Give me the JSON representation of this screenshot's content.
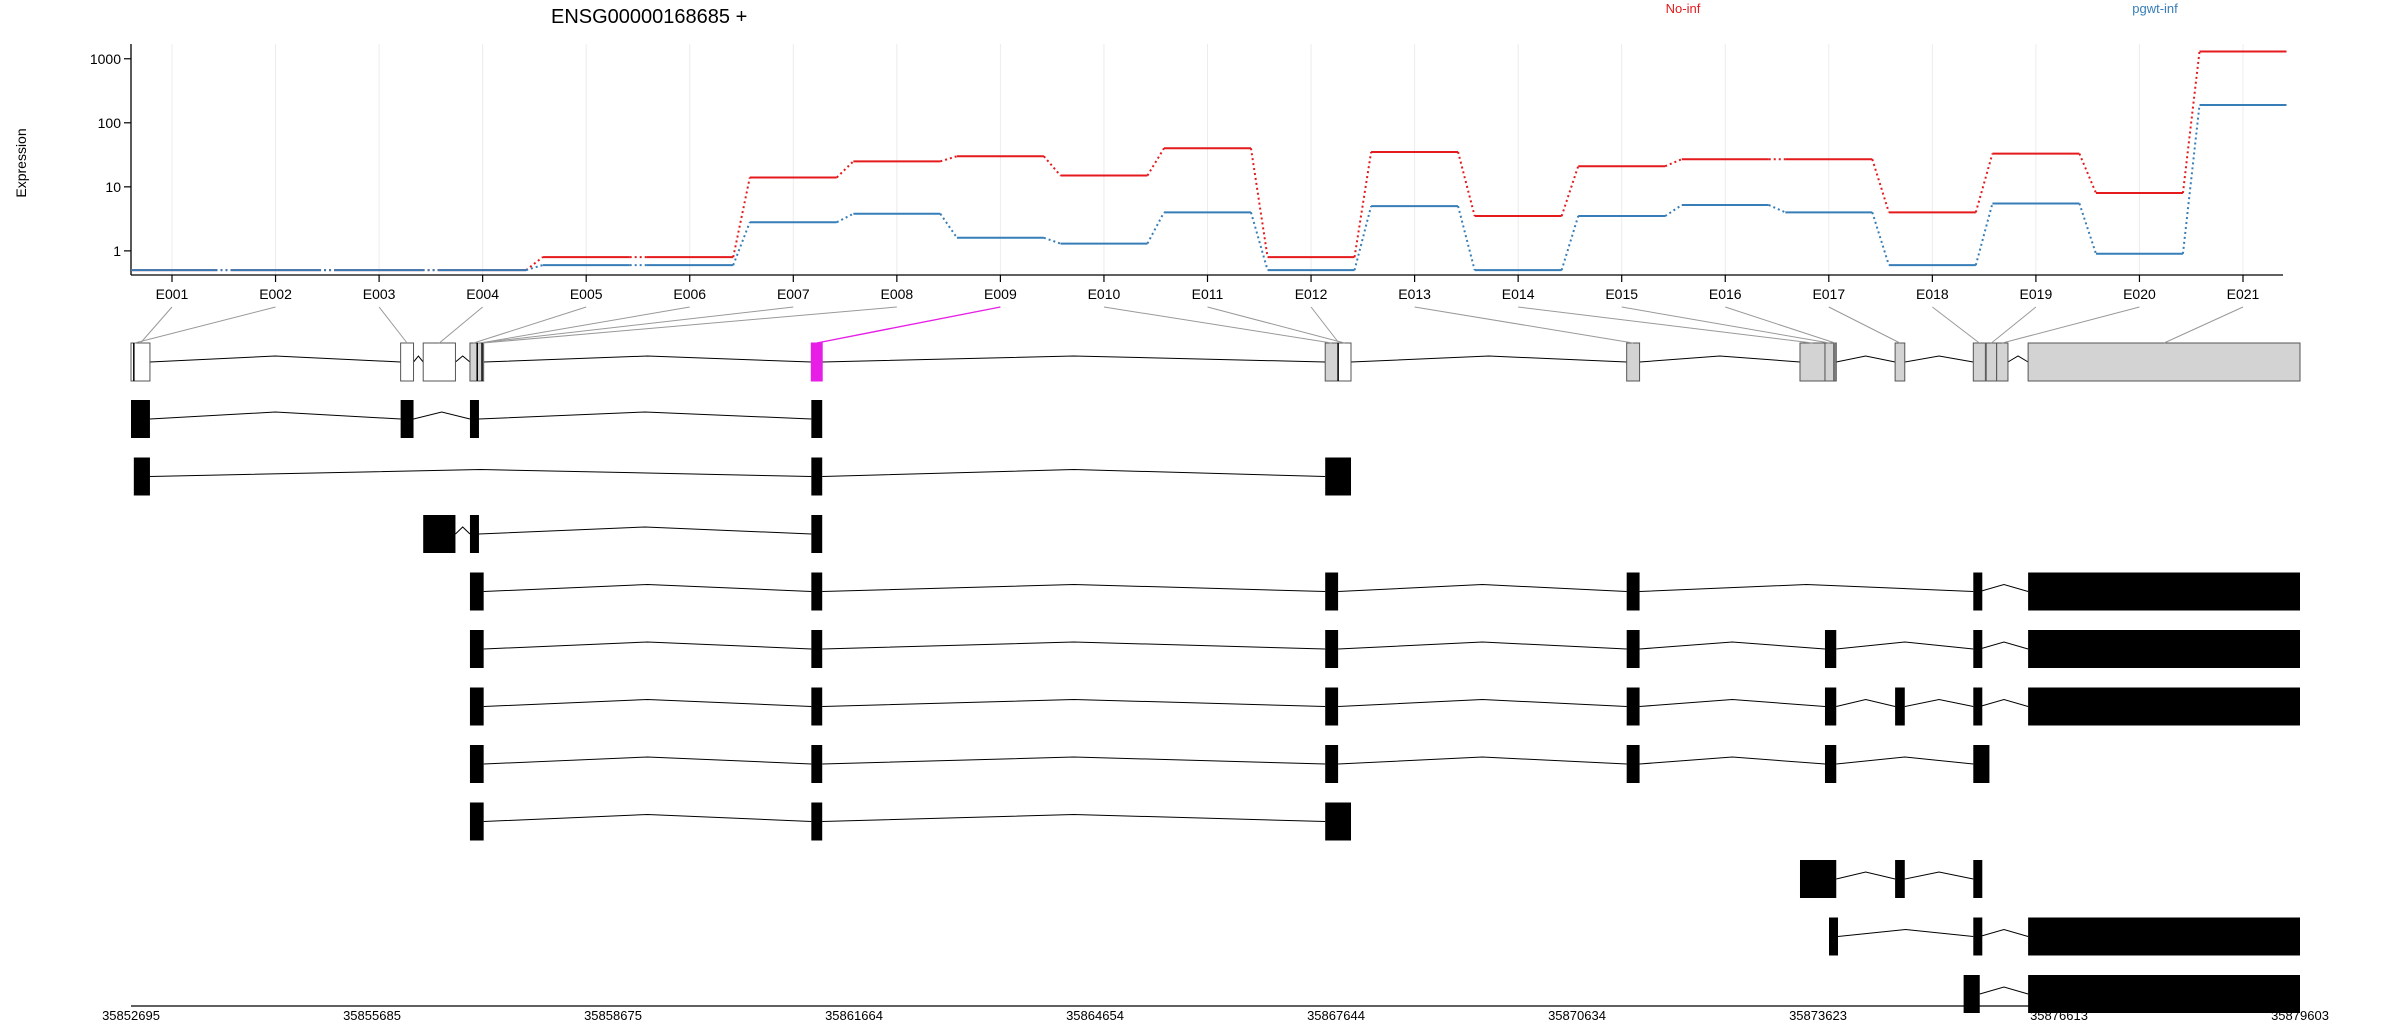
{
  "chart_data": {
    "type": "line",
    "title": "ENSG00000168685 +",
    "ylabel": "Expression",
    "y_scale": "log",
    "y_ticks": [
      "1",
      "10",
      "100",
      "1000"
    ],
    "y_tick_values": [
      1,
      10,
      100,
      1000
    ],
    "ylim": [
      0.42,
      1700
    ],
    "grid": "vertical",
    "legend_placement": "top-right",
    "categories": [
      "E001",
      "E002",
      "E003",
      "E004",
      "E005",
      "E006",
      "E007",
      "E008",
      "E009",
      "E010",
      "E011",
      "E012",
      "E013",
      "E014",
      "E015",
      "E016",
      "E017",
      "E018",
      "E019",
      "E020",
      "E021"
    ],
    "series": [
      {
        "name": "No-inf",
        "color": "#e41a1c",
        "values": [
          0.5,
          0.5,
          0.5,
          0.5,
          0.8,
          0.8,
          14,
          25,
          30,
          15,
          40,
          0.8,
          35,
          3.5,
          21,
          27,
          27,
          4,
          33,
          8,
          1300
        ]
      },
      {
        "name": "pgwt-inf",
        "color": "#377eb8",
        "values": [
          0.5,
          0.5,
          0.5,
          0.5,
          0.6,
          0.6,
          2.8,
          3.8,
          1.6,
          1.3,
          4,
          0.5,
          5,
          0.5,
          3.5,
          5.2,
          4,
          0.6,
          5.5,
          0.9,
          190
        ]
      }
    ],
    "highlighted_exon": "E009",
    "highlight_color": "#e61ee6",
    "genome_axis": {
      "labels": [
        "35852695",
        "35855685",
        "35858675",
        "35861664",
        "35864654",
        "35867644",
        "35870634",
        "35873623",
        "35876613",
        "35879603"
      ],
      "range": [
        35852695,
        35879603
      ]
    },
    "exons": [
      {
        "id": "E001",
        "start": 35852695,
        "end": 35852930,
        "type": "open"
      },
      {
        "id": "E002",
        "start": 35852730,
        "end": 35852750,
        "type": "line"
      },
      {
        "id": "E003",
        "start": 35856040,
        "end": 35856200,
        "type": "open"
      },
      {
        "id": "E004",
        "start": 35856320,
        "end": 35856720,
        "type": "open"
      },
      {
        "id": "E005",
        "start": 35856900,
        "end": 35856990,
        "type": "gray"
      },
      {
        "id": "E006",
        "start": 35856990,
        "end": 35857070,
        "type": "gray"
      },
      {
        "id": "E007",
        "start": 35856990,
        "end": 35857010,
        "type": "line"
      },
      {
        "id": "E008",
        "start": 35857050,
        "end": 35857070,
        "type": "line"
      },
      {
        "id": "E009",
        "start": 35861135,
        "end": 35861270,
        "type": "pink"
      },
      {
        "id": "E010",
        "start": 35867510,
        "end": 35867670,
        "type": "gray"
      },
      {
        "id": "E011",
        "start": 35867670,
        "end": 35867830,
        "type": "open"
      },
      {
        "id": "E012",
        "start": 35867670,
        "end": 35867690,
        "type": "line"
      },
      {
        "id": "E013",
        "start": 35871250,
        "end": 35871410,
        "type": "gray"
      },
      {
        "id": "E014",
        "start": 35873400,
        "end": 35873710,
        "type": "gray"
      },
      {
        "id": "E015",
        "start": 35873710,
        "end": 35873820,
        "type": "gray"
      },
      {
        "id": "E016",
        "start": 35873820,
        "end": 35873850,
        "type": "dark"
      },
      {
        "id": "E017",
        "start": 35874580,
        "end": 35874700,
        "type": "gray"
      },
      {
        "id": "E018",
        "start": 35875550,
        "end": 35875700,
        "type": "gray"
      },
      {
        "id": "E019",
        "start": 35875710,
        "end": 35875840,
        "type": "gray"
      },
      {
        "id": "E020",
        "start": 35875840,
        "end": 35875980,
        "type": "gray"
      },
      {
        "id": "E021",
        "start": 35876230,
        "end": 35879603,
        "type": "gray"
      }
    ],
    "transcripts": [
      [
        [
          35852695,
          35852930
        ],
        [
          35856040,
          35856200
        ],
        [
          35856900,
          35857010
        ],
        [
          35861135,
          35861270
        ]
      ],
      [
        [
          35852730,
          35852930
        ],
        [
          35861135,
          35861270
        ],
        [
          35867510,
          35867830
        ]
      ],
      [
        [
          35856320,
          35856720
        ],
        [
          35856900,
          35857010
        ],
        [
          35861135,
          35861270
        ]
      ],
      [
        [
          35856900,
          35857070
        ],
        [
          35861135,
          35861270
        ],
        [
          35867510,
          35867670
        ],
        [
          35871250,
          35871410
        ],
        [
          35875550,
          35875630
        ],
        [
          35876230,
          35879603
        ]
      ],
      [
        [
          35856900,
          35857070
        ],
        [
          35861135,
          35861270
        ],
        [
          35867510,
          35867670
        ],
        [
          35871250,
          35871410
        ],
        [
          35873710,
          35873850
        ],
        [
          35875550,
          35875630
        ],
        [
          35876230,
          35879603
        ]
      ],
      [
        [
          35856900,
          35857070
        ],
        [
          35861135,
          35861270
        ],
        [
          35867510,
          35867670
        ],
        [
          35871250,
          35871410
        ],
        [
          35873710,
          35873850
        ],
        [
          35874580,
          35874700
        ],
        [
          35875550,
          35875630
        ],
        [
          35876230,
          35879603
        ]
      ],
      [
        [
          35856900,
          35857070
        ],
        [
          35861135,
          35861270
        ],
        [
          35867510,
          35867670
        ],
        [
          35871250,
          35871410
        ],
        [
          35873710,
          35873850
        ],
        [
          35875550,
          35875750
        ]
      ],
      [
        [
          35856900,
          35857070
        ],
        [
          35861135,
          35861270
        ],
        [
          35867510,
          35867830
        ]
      ],
      [
        [
          35873400,
          35873850
        ],
        [
          35874580,
          35874700
        ],
        [
          35875550,
          35875630
        ]
      ],
      [
        [
          35873760,
          35873870
        ],
        [
          35875550,
          35875630
        ],
        [
          35876230,
          35879603
        ]
      ],
      [
        [
          35875430,
          35875630
        ],
        [
          35876230,
          35879603
        ]
      ]
    ]
  }
}
